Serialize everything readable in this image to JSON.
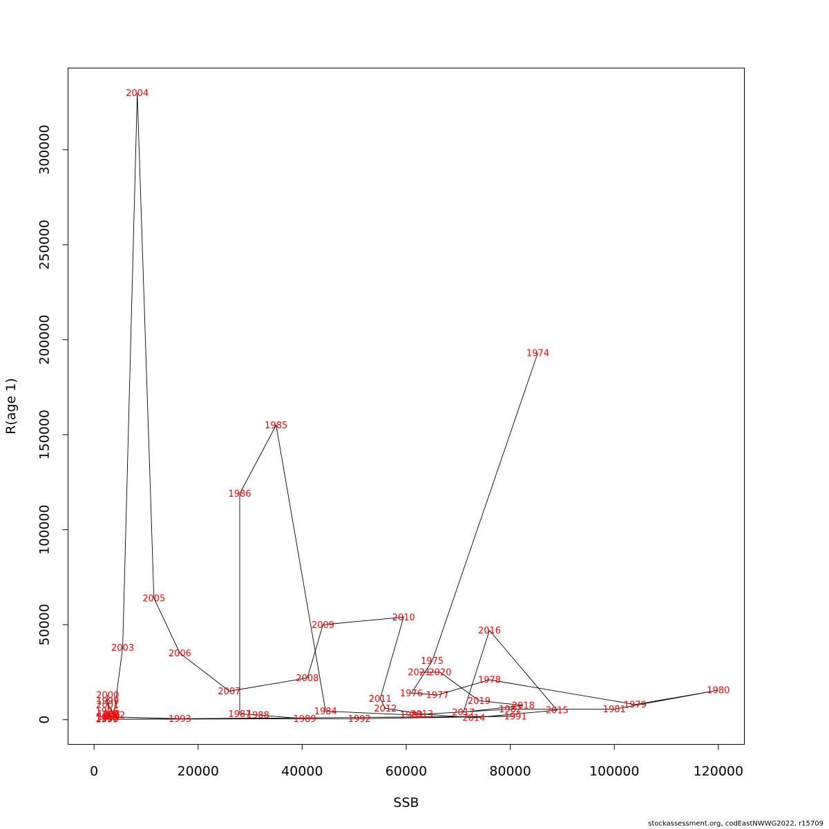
{
  "chart_data": {
    "type": "line",
    "xlabel": "SSB",
    "ylabel": "R(age 1)",
    "xlim": [
      -5000,
      125000
    ],
    "ylim": [
      -13000,
      343000
    ],
    "x_ticks": [
      0,
      20000,
      40000,
      60000,
      80000,
      100000,
      120000
    ],
    "y_ticks": [
      0,
      50000,
      100000,
      150000,
      200000,
      250000,
      300000
    ],
    "grid": false,
    "legend": "none",
    "colors": {
      "line": "#000000",
      "labels": "#ff0000"
    },
    "points": [
      {
        "year": "1974",
        "x": 85300,
        "y": 193000
      },
      {
        "year": "1975",
        "x": 65000,
        "y": 31000
      },
      {
        "year": "1976",
        "x": 61000,
        "y": 14000
      },
      {
        "year": "1977",
        "x": 66000,
        "y": 13000
      },
      {
        "year": "1978",
        "x": 76000,
        "y": 21000
      },
      {
        "year": "1979",
        "x": 104000,
        "y": 8000
      },
      {
        "year": "1980",
        "x": 120000,
        "y": 15500
      },
      {
        "year": "1981",
        "x": 100000,
        "y": 5500
      },
      {
        "year": "1982",
        "x": 80000,
        "y": 5500
      },
      {
        "year": "1983",
        "x": 61000,
        "y": 2500
      },
      {
        "year": "1984",
        "x": 44500,
        "y": 4500
      },
      {
        "year": "1985",
        "x": 35000,
        "y": 155000
      },
      {
        "year": "1986",
        "x": 28000,
        "y": 119000
      },
      {
        "year": "1987",
        "x": 28000,
        "y": 3000
      },
      {
        "year": "1988",
        "x": 31500,
        "y": 2500
      },
      {
        "year": "1989",
        "x": 40500,
        "y": 500
      },
      {
        "year": "1990",
        "x": 2500,
        "y": 200
      },
      {
        "year": "1991",
        "x": 81000,
        "y": 1800
      },
      {
        "year": "1992",
        "x": 51000,
        "y": 500
      },
      {
        "year": "1993",
        "x": 16500,
        "y": 500
      },
      {
        "year": "1994",
        "x": 2800,
        "y": 1500
      },
      {
        "year": "1995",
        "x": 2500,
        "y": 500
      },
      {
        "year": "1996",
        "x": 2500,
        "y": 4500
      },
      {
        "year": "1997",
        "x": 2500,
        "y": 800
      },
      {
        "year": "1998",
        "x": 2800,
        "y": 3000
      },
      {
        "year": "1999",
        "x": 2600,
        "y": 10000
      },
      {
        "year": "2000",
        "x": 2600,
        "y": 13000
      },
      {
        "year": "2001",
        "x": 2600,
        "y": 8000
      },
      {
        "year": "2002",
        "x": 3800,
        "y": 2500
      },
      {
        "year": "2003",
        "x": 5500,
        "y": 38000
      },
      {
        "year": "2004",
        "x": 8300,
        "y": 330000
      },
      {
        "year": "2005",
        "x": 11500,
        "y": 64000
      },
      {
        "year": "2006",
        "x": 16500,
        "y": 35000
      },
      {
        "year": "2007",
        "x": 26000,
        "y": 15000
      },
      {
        "year": "2008",
        "x": 41000,
        "y": 22000
      },
      {
        "year": "2009",
        "x": 44000,
        "y": 50000
      },
      {
        "year": "2010",
        "x": 59500,
        "y": 54000
      },
      {
        "year": "2011",
        "x": 55000,
        "y": 11000
      },
      {
        "year": "2012",
        "x": 56000,
        "y": 6000
      },
      {
        "year": "2013",
        "x": 63000,
        "y": 3000
      },
      {
        "year": "2014",
        "x": 73000,
        "y": 1000
      },
      {
        "year": "2015",
        "x": 89000,
        "y": 5000
      },
      {
        "year": "2016",
        "x": 76000,
        "y": 47000
      },
      {
        "year": "2017",
        "x": 71000,
        "y": 4000
      },
      {
        "year": "2018",
        "x": 82500,
        "y": 7500
      },
      {
        "year": "2019",
        "x": 74000,
        "y": 10000
      },
      {
        "year": "2020",
        "x": 66500,
        "y": 25000
      },
      {
        "year": "2021",
        "x": 62500,
        "y": 25000
      }
    ]
  },
  "credit": "stockassessment.org, codEastNWWG2022, r15709"
}
